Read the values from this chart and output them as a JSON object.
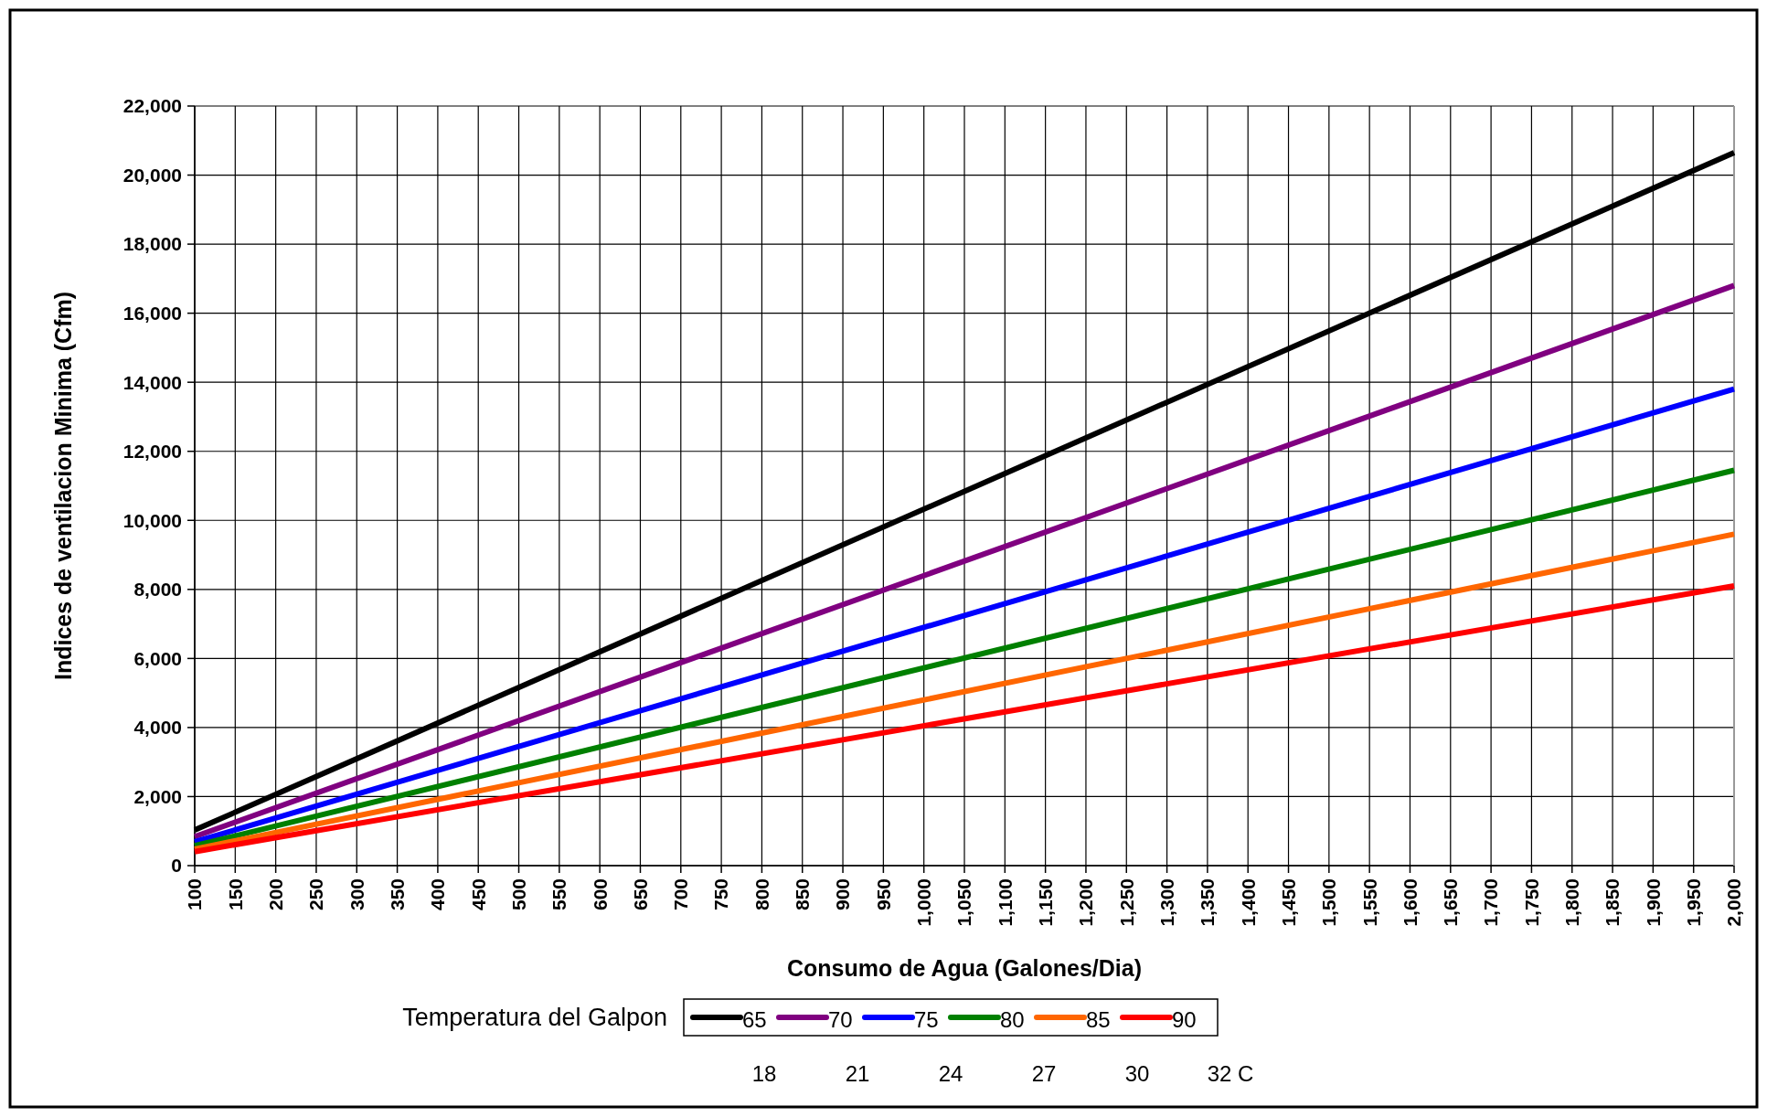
{
  "chart_data": {
    "type": "line",
    "xlabel": "Consumo de Agua (Galones/Dia)",
    "ylabel": "Indices de ventilacion Minima (Cfm)",
    "legend_title": "Temperatura del Galpon",
    "x": [
      100,
      2000
    ],
    "series": [
      {
        "name": "65",
        "color": "#000000",
        "values": [
          1030,
          20650
        ]
      },
      {
        "name": "70",
        "color": "#800080",
        "values": [
          840,
          16800
        ]
      },
      {
        "name": "75",
        "color": "#0000ff",
        "values": [
          690,
          13800
        ]
      },
      {
        "name": "80",
        "color": "#008000",
        "values": [
          575,
          11450
        ]
      },
      {
        "name": "85",
        "color": "#ff6600",
        "values": [
          480,
          9600
        ]
      },
      {
        "name": "90",
        "color": "#ff0000",
        "values": [
          405,
          8100
        ]
      }
    ],
    "xlim": [
      100,
      2000
    ],
    "xticks": [
      100,
      150,
      200,
      250,
      300,
      350,
      400,
      450,
      500,
      550,
      600,
      650,
      700,
      750,
      800,
      850,
      900,
      950,
      {
        "value": 1000,
        "label": "1,000"
      },
      {
        "value": 1050,
        "label": "1,050"
      },
      {
        "value": 1100,
        "label": "1,100"
      },
      {
        "value": 1150,
        "label": "1,150"
      },
      {
        "value": 1200,
        "label": "1,200"
      },
      {
        "value": 1250,
        "label": "1,250"
      },
      {
        "value": 1300,
        "label": "1,300"
      },
      {
        "value": 1350,
        "label": "1,350"
      },
      {
        "value": 1400,
        "label": "1,400"
      },
      {
        "value": 1450,
        "label": "1,450"
      },
      {
        "value": 1500,
        "label": "1,500"
      },
      {
        "value": 1550,
        "label": "1,550"
      },
      {
        "value": 1600,
        "label": "1,600"
      },
      {
        "value": 1650,
        "label": "1,650"
      },
      {
        "value": 1700,
        "label": "1,700"
      },
      {
        "value": 1750,
        "label": "1,750"
      },
      {
        "value": 1800,
        "label": "1,800"
      },
      {
        "value": 1850,
        "label": "1,850"
      },
      {
        "value": 1900,
        "label": "1,900"
      },
      {
        "value": 1950,
        "label": "1,950"
      },
      {
        "value": 2000,
        "label": "2,000"
      }
    ],
    "ylim": [
      0,
      22000
    ],
    "yticks": [
      0,
      {
        "value": 2000,
        "label": "2,000"
      },
      {
        "value": 4000,
        "label": "4,000"
      },
      {
        "value": 6000,
        "label": "6,000"
      },
      {
        "value": 8000,
        "label": "8,000"
      },
      {
        "value": 10000,
        "label": "10,000"
      },
      {
        "value": 12000,
        "label": "12,000"
      },
      {
        "value": 14000,
        "label": "14,000"
      },
      {
        "value": 16000,
        "label": "16,000"
      },
      {
        "value": 18000,
        "label": "18,000"
      },
      {
        "value": 20000,
        "label": "20,000"
      },
      {
        "value": 22000,
        "label": "22,000"
      }
    ],
    "grid": true,
    "legend": "bottom",
    "marker": "none",
    "line_style": "solid",
    "annotations": [
      "18",
      "21",
      "24",
      "27",
      "30",
      "32 C"
    ]
  }
}
